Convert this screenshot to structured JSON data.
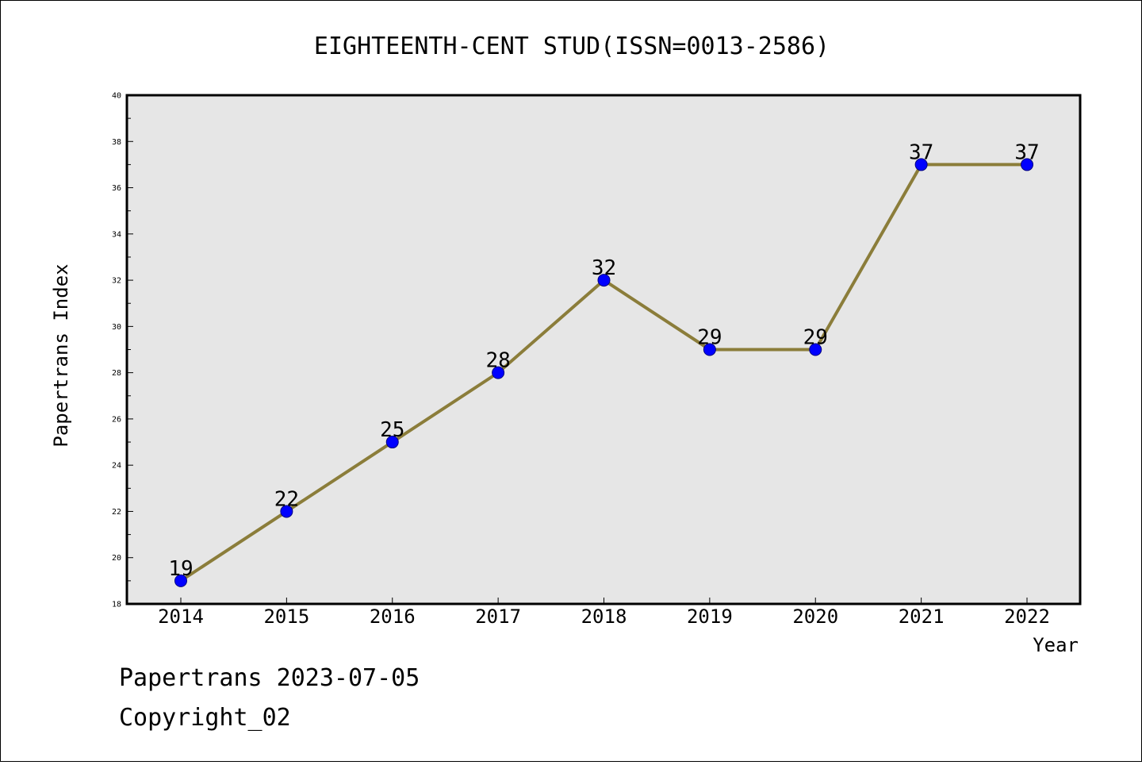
{
  "chart_data": {
    "type": "line",
    "title": "EIGHTEENTH-CENT STUD(ISSN=0013-2586)",
    "xlabel": "Year",
    "ylabel": "Papertrans Index",
    "categories": [
      "2014",
      "2015",
      "2016",
      "2017",
      "2018",
      "2019",
      "2020",
      "2021",
      "2022"
    ],
    "series": [
      {
        "values": [
          19,
          22,
          25,
          28,
          32,
          29,
          29,
          37,
          37
        ]
      }
    ],
    "ylim": [
      18,
      40
    ],
    "yticks": [
      18,
      20,
      22,
      24,
      26,
      28,
      30,
      32,
      34,
      36,
      38,
      40
    ],
    "grid": false,
    "data_labels": true,
    "colors": {
      "line": "#8b7d3a",
      "marker": "#0000ff",
      "marker_edge": "#000080",
      "plot_background": "#e6e6e6",
      "frame": "#000000"
    }
  },
  "footer": {
    "line1": "Papertrans 2023-07-05",
    "line2": "Copyright_02"
  }
}
